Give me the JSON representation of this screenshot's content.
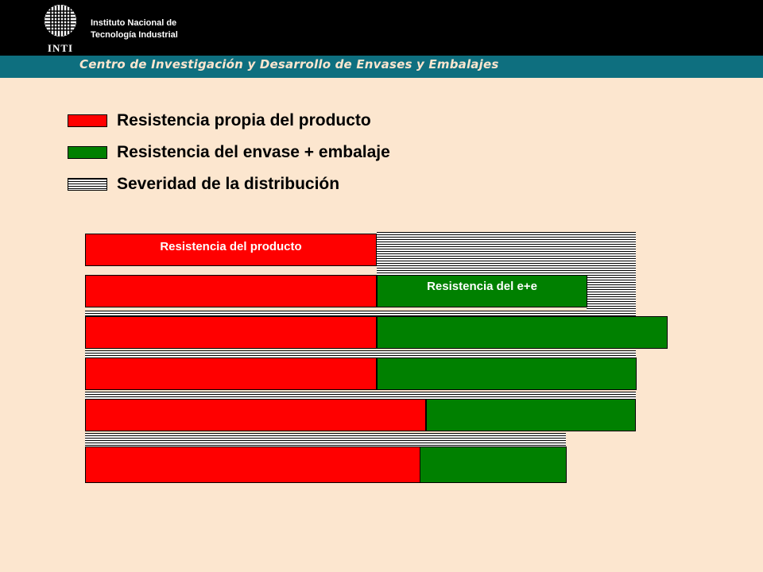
{
  "header": {
    "logo_text": "INTI",
    "institution_line1": "Instituto Nacional de",
    "institution_line2": "Tecnología Industrial",
    "subtitle": "Centro de Investigación y Desarrollo de Envases y Embalajes"
  },
  "colors": {
    "product_resistance": "#ff0000",
    "packaging_resistance": "#008000",
    "distribution_severity": "hatched black/white",
    "background": "#fce6cf",
    "subtitle_bar": "#0e6f7f"
  },
  "legend": [
    {
      "label": "Resistencia propia del producto",
      "swatch": "red"
    },
    {
      "label": "Resistencia del envase + embalaje",
      "swatch": "green"
    },
    {
      "label": "Severidad de la distribución",
      "swatch": "hatched"
    }
  ],
  "diagram": {
    "label_product": "Resistencia del producto",
    "label_packaging": "Resistencia del e+e"
  }
}
